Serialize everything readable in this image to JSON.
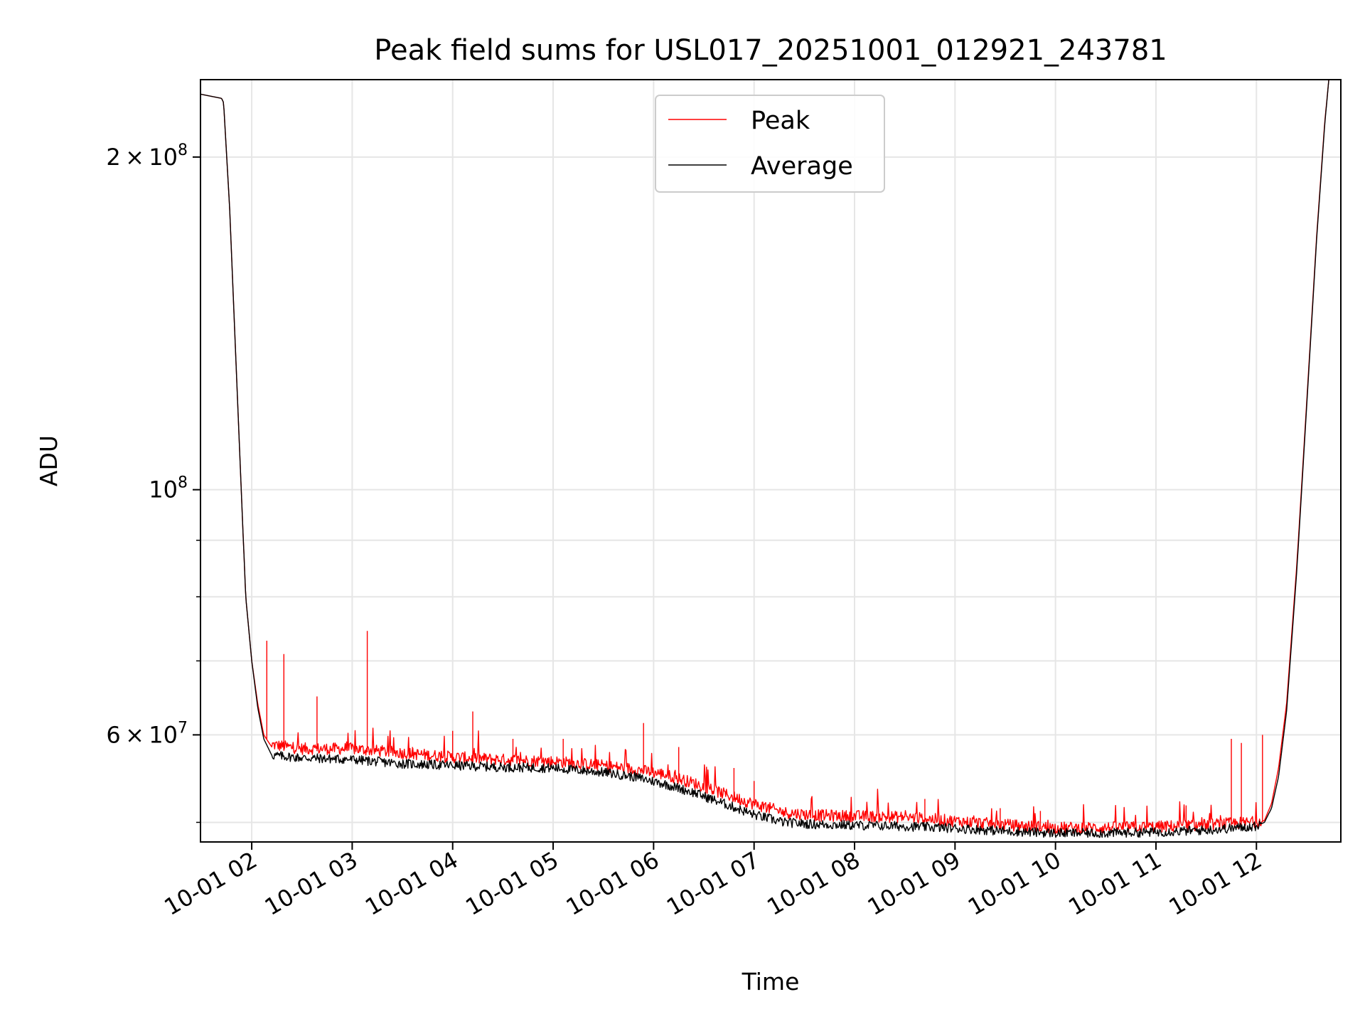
{
  "chart_data": {
    "type": "line",
    "title": "Peak field sums for USL017_20251001_012921_243781",
    "xlabel": "Time",
    "ylabel": "ADU",
    "yscale": "log",
    "ylim": [
      48000000,
      235000000
    ],
    "xlim_hours": [
      1.49,
      12.84
    ],
    "grid": true,
    "legend_position": "upper center",
    "x_ticks": [
      {
        "hour": 2,
        "label": "10-01 02"
      },
      {
        "hour": 3,
        "label": "10-01 03"
      },
      {
        "hour": 4,
        "label": "10-01 04"
      },
      {
        "hour": 5,
        "label": "10-01 05"
      },
      {
        "hour": 6,
        "label": "10-01 06"
      },
      {
        "hour": 7,
        "label": "10-01 07"
      },
      {
        "hour": 8,
        "label": "10-01 08"
      },
      {
        "hour": 9,
        "label": "10-01 09"
      },
      {
        "hour": 10,
        "label": "10-01 10"
      },
      {
        "hour": 11,
        "label": "10-01 11"
      },
      {
        "hour": 12,
        "label": "10-01 12"
      }
    ],
    "y_major_ticks": [
      {
        "value": 60000000,
        "base": "6",
        "exp": "7"
      },
      {
        "value": 100000000,
        "base": "",
        "exp": "8"
      },
      {
        "value": 200000000,
        "base": "2",
        "exp": "8"
      }
    ],
    "y_minor_ticks": [
      50000000,
      70000000,
      80000000,
      90000000
    ],
    "tick_times_sign": "×",
    "tick_ten": "10",
    "series": [
      {
        "name": "Peak",
        "color": "#ff0000",
        "profile": [
          [
            1.49,
            228000000
          ],
          [
            1.7,
            226000000
          ],
          [
            1.72,
            224000000
          ],
          [
            1.78,
            180000000
          ],
          [
            1.86,
            120000000
          ],
          [
            1.94,
            80000000
          ],
          [
            2.0,
            70000000
          ],
          [
            2.06,
            64000000
          ],
          [
            2.12,
            60000000
          ],
          [
            2.2,
            58500000
          ],
          [
            2.5,
            58000000
          ],
          [
            3.0,
            58000000
          ],
          [
            3.5,
            57500000
          ],
          [
            4.0,
            57000000
          ],
          [
            4.5,
            56700000
          ],
          [
            5.0,
            56500000
          ],
          [
            5.5,
            56000000
          ],
          [
            5.8,
            55600000
          ],
          [
            6.1,
            55000000
          ],
          [
            6.4,
            54000000
          ],
          [
            6.7,
            52800000
          ],
          [
            7.0,
            51700000
          ],
          [
            7.3,
            50800000
          ],
          [
            7.6,
            50500000
          ],
          [
            8.0,
            50400000
          ],
          [
            8.5,
            50300000
          ],
          [
            9.0,
            49900000
          ],
          [
            9.5,
            49500000
          ],
          [
            10.0,
            49200000
          ],
          [
            10.5,
            49200000
          ],
          [
            11.0,
            49300000
          ],
          [
            11.5,
            49500000
          ],
          [
            12.0,
            49800000
          ],
          [
            12.08,
            50200000
          ],
          [
            12.15,
            52000000
          ],
          [
            12.22,
            56000000
          ],
          [
            12.3,
            64000000
          ],
          [
            12.4,
            85000000
          ],
          [
            12.5,
            120000000
          ],
          [
            12.6,
            170000000
          ],
          [
            12.68,
            215000000
          ],
          [
            12.72,
            235000000
          ],
          [
            12.84,
            235000000
          ]
        ],
        "spikes": [
          [
            2.15,
            73000000
          ],
          [
            2.32,
            71000000
          ],
          [
            2.65,
            65000000
          ],
          [
            3.15,
            74500000
          ],
          [
            2.95,
            59000000
          ],
          [
            3.6,
            58500000
          ],
          [
            4.0,
            60500000
          ],
          [
            4.2,
            63000000
          ],
          [
            4.6,
            59500000
          ],
          [
            5.1,
            59500000
          ],
          [
            5.9,
            61500000
          ],
          [
            6.25,
            58500000
          ],
          [
            6.8,
            56000000
          ],
          [
            7.0,
            54500000
          ],
          [
            8.7,
            52500000
          ],
          [
            9.45,
            51500000
          ],
          [
            9.85,
            51200000
          ],
          [
            11.3,
            51800000
          ],
          [
            11.75,
            59500000
          ],
          [
            11.85,
            59000000
          ],
          [
            12.06,
            60000000
          ]
        ]
      },
      {
        "name": "Average",
        "color": "#000000",
        "profile": [
          [
            1.49,
            228000000
          ],
          [
            1.7,
            226000000
          ],
          [
            1.72,
            224000000
          ],
          [
            1.78,
            180000000
          ],
          [
            1.86,
            120000000
          ],
          [
            1.94,
            80000000
          ],
          [
            2.0,
            70000000
          ],
          [
            2.06,
            63500000
          ],
          [
            2.12,
            59500000
          ],
          [
            2.2,
            57500000
          ],
          [
            2.5,
            57200000
          ],
          [
            3.0,
            57000000
          ],
          [
            3.5,
            56500000
          ],
          [
            4.0,
            56300000
          ],
          [
            4.5,
            56100000
          ],
          [
            5.0,
            56000000
          ],
          [
            5.5,
            55500000
          ],
          [
            5.8,
            55000000
          ],
          [
            6.1,
            54200000
          ],
          [
            6.4,
            53200000
          ],
          [
            6.7,
            52000000
          ],
          [
            7.0,
            50800000
          ],
          [
            7.3,
            50000000
          ],
          [
            7.6,
            49800000
          ],
          [
            8.0,
            49700000
          ],
          [
            8.5,
            49600000
          ],
          [
            9.0,
            49400000
          ],
          [
            9.5,
            49100000
          ],
          [
            10.0,
            48900000
          ],
          [
            10.5,
            48900000
          ],
          [
            11.0,
            49000000
          ],
          [
            11.5,
            49200000
          ],
          [
            12.0,
            49600000
          ],
          [
            12.08,
            50000000
          ],
          [
            12.15,
            51500000
          ],
          [
            12.22,
            55000000
          ],
          [
            12.3,
            63000000
          ],
          [
            12.4,
            84000000
          ],
          [
            12.5,
            119000000
          ],
          [
            12.6,
            169000000
          ],
          [
            12.68,
            214000000
          ],
          [
            12.72,
            235000000
          ],
          [
            12.84,
            235000000
          ]
        ]
      }
    ]
  }
}
